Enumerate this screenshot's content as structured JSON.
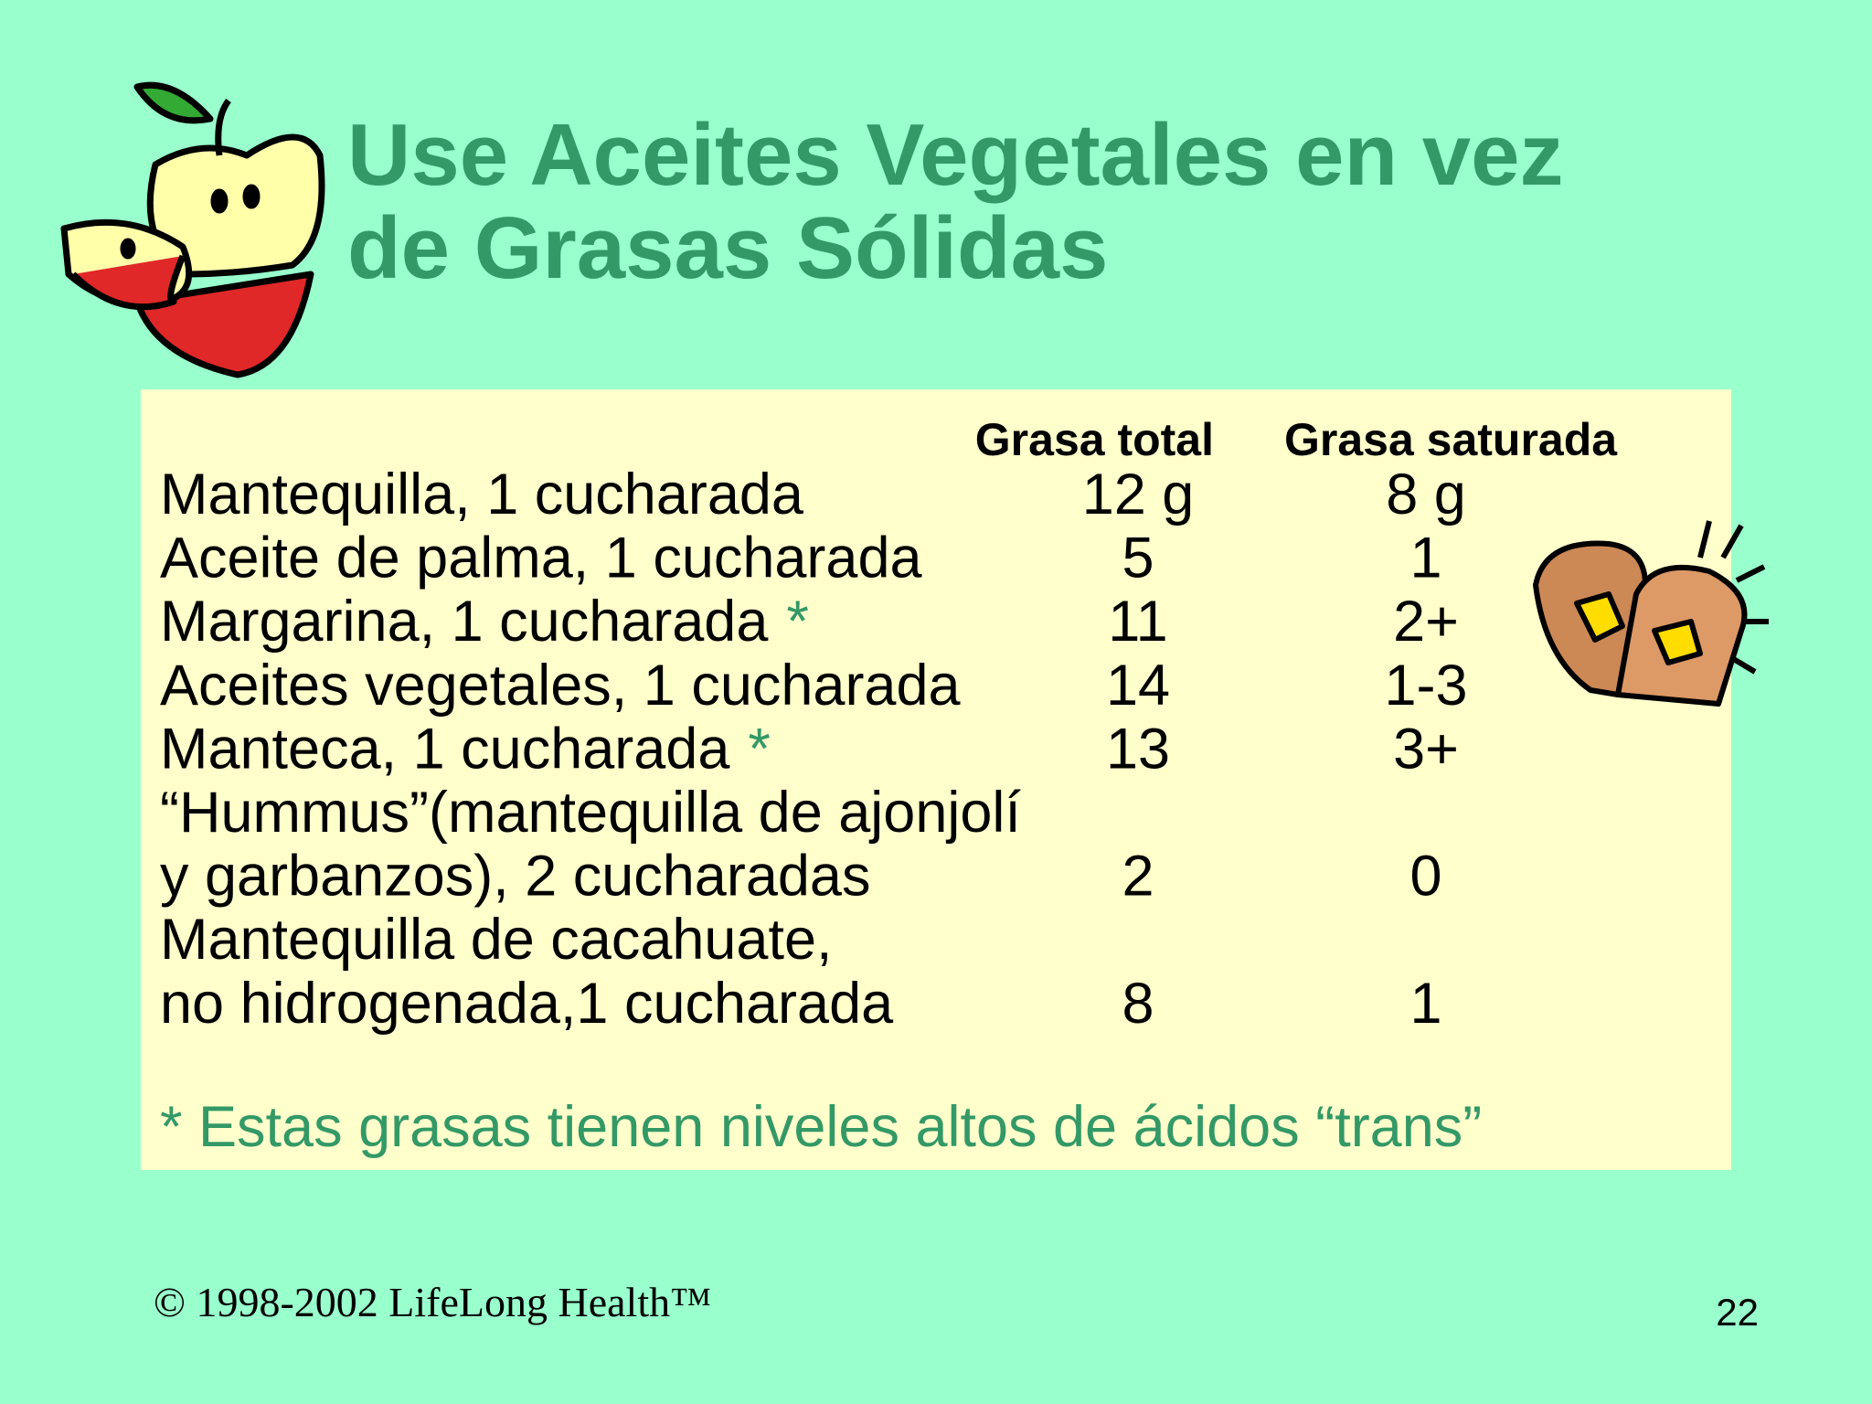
{
  "header": {
    "title_lines": [
      "Use Aceites Vegetales en vez",
      "de Grasas Sólidas"
    ]
  },
  "table": {
    "columns": [
      "Grasa total",
      "Grasa saturada"
    ],
    "rows": [
      {
        "name_lines": [
          "Mantequilla, 1 cucharada"
        ],
        "total": "12 g",
        "saturated": "8 g"
      },
      {
        "name_lines": [
          "Aceite de palma, 1 cucharada"
        ],
        "total": "5",
        "saturated": "1"
      },
      {
        "name_lines": [
          "Margarina, 1 cucharada"
        ],
        "mark": "*",
        "total": "11",
        "saturated": "2+"
      },
      {
        "name_lines": [
          "Aceites vegetales, 1 cucharada"
        ],
        "total": "14",
        "saturated": "1-3"
      },
      {
        "name_lines": [
          "Manteca, 1 cucharada"
        ],
        "mark": "*",
        "total": "13",
        "saturated": "3+"
      },
      {
        "name_lines": [
          "“Hummus”(mantequilla de ajonjolí",
          "y garbanzos), 2 cucharadas"
        ],
        "total": "2",
        "saturated": "0"
      },
      {
        "name_lines": [
          "Mantequilla de cacahuate,",
          "no hidrogenada,1 cucharada"
        ],
        "total": "8",
        "saturated": "1"
      }
    ],
    "footnote": "* Estas grasas tienen niveles altos de ácidos “trans”"
  },
  "footer": {
    "copyright": "© 1998-2002 LifeLong Health™",
    "page_number": "22"
  }
}
